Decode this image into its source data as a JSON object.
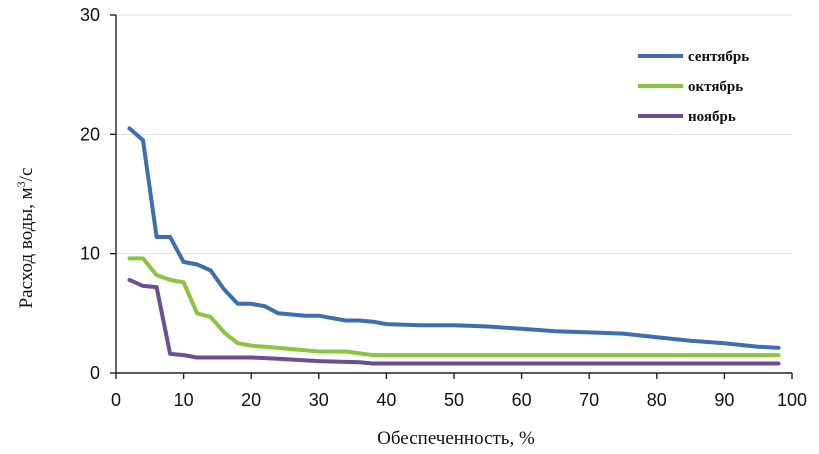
{
  "chart_data": {
    "type": "line",
    "xlabel": "Обеспеченность, %",
    "ylabel_main": "Расход воды, м",
    "ylabel_sup": "3",
    "ylabel_end": "/с",
    "xlim": [
      0,
      100
    ],
    "ylim": [
      0,
      30
    ],
    "x_ticks": [
      0,
      10,
      20,
      30,
      40,
      50,
      60,
      70,
      80,
      90,
      100
    ],
    "y_ticks": [
      0,
      10,
      20,
      30
    ],
    "grid": true,
    "legend_position": "top-right",
    "series": [
      {
        "name": "сентябрь",
        "color": "#3d6fae",
        "x": [
          2,
          4,
          6,
          8,
          10,
          12,
          14,
          16,
          18,
          20,
          22,
          24,
          26,
          28,
          30,
          32,
          34,
          36,
          38,
          40,
          45,
          50,
          55,
          60,
          65,
          70,
          75,
          80,
          85,
          90,
          95,
          98
        ],
        "y": [
          20.5,
          19.5,
          11.4,
          11.4,
          9.3,
          9.1,
          8.6,
          7.0,
          5.8,
          5.8,
          5.6,
          5.0,
          4.9,
          4.8,
          4.8,
          4.6,
          4.4,
          4.4,
          4.3,
          4.1,
          4.0,
          4.0,
          3.9,
          3.7,
          3.5,
          3.4,
          3.3,
          3.0,
          2.7,
          2.5,
          2.2,
          2.1
        ]
      },
      {
        "name": "октябрь",
        "color": "#8bc53f",
        "x": [
          2,
          4,
          6,
          8,
          10,
          12,
          14,
          16,
          18,
          20,
          24,
          30,
          34,
          38,
          40,
          50,
          60,
          70,
          80,
          90,
          98
        ],
        "y": [
          9.6,
          9.6,
          8.2,
          7.8,
          7.6,
          5.0,
          4.7,
          3.4,
          2.5,
          2.3,
          2.1,
          1.8,
          1.8,
          1.5,
          1.5,
          1.5,
          1.5,
          1.5,
          1.5,
          1.5,
          1.5
        ]
      },
      {
        "name": "ноябрь",
        "color": "#6a4f94",
        "x": [
          2,
          4,
          6,
          8,
          10,
          12,
          20,
          24,
          30,
          36,
          38,
          50,
          60,
          70,
          80,
          90,
          98
        ],
        "y": [
          7.8,
          7.3,
          7.2,
          1.6,
          1.5,
          1.3,
          1.3,
          1.2,
          1.0,
          0.9,
          0.8,
          0.8,
          0.8,
          0.8,
          0.8,
          0.8,
          0.8
        ]
      }
    ]
  }
}
